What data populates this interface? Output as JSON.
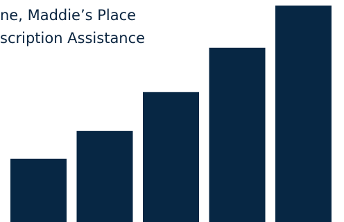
{
  "caption": {
    "line1": "ne, Maddie’s Place",
    "line2": "scription Assistance"
  },
  "colors": {
    "bar": "#072744",
    "text": "#0b2540",
    "background": "#ffffff"
  },
  "chart_data": {
    "type": "bar",
    "title": "",
    "xlabel": "",
    "ylabel": "",
    "categories": [
      "",
      "",
      "",
      "",
      ""
    ],
    "values": [
      28.5,
      41,
      58.5,
      78.5,
      97.5
    ],
    "ylim": [
      0,
      100
    ],
    "grid": false,
    "legend": "none"
  }
}
